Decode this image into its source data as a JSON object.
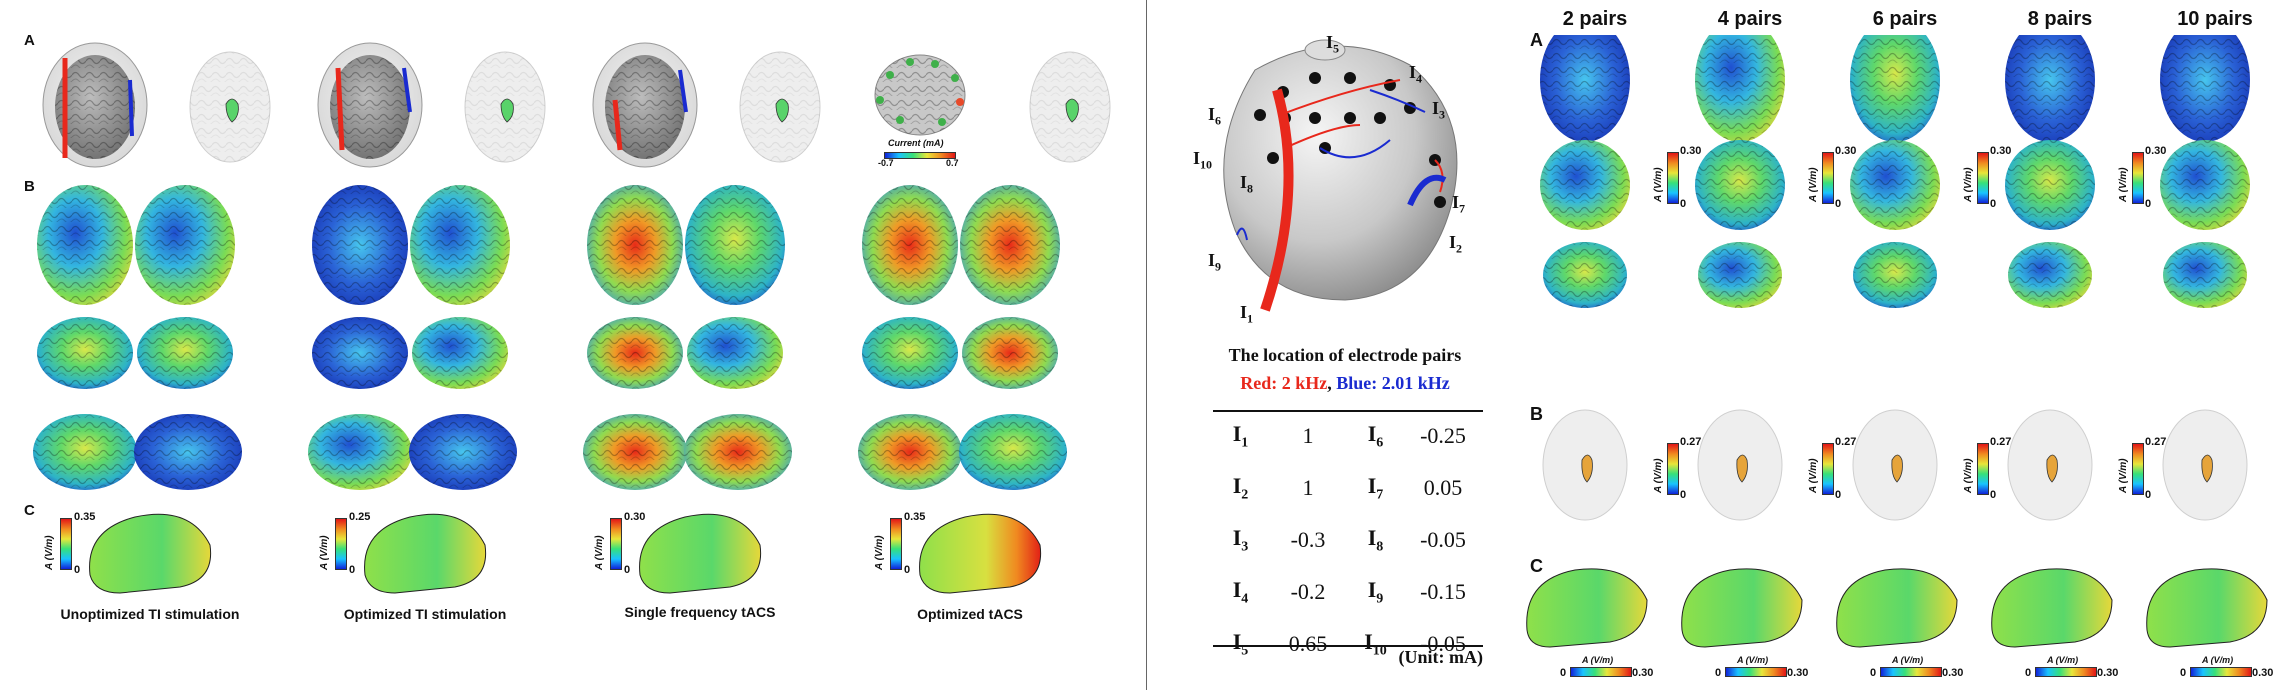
{
  "left_panel": {
    "row_labels": [
      "A",
      "B",
      "C"
    ],
    "captions": [
      "Unoptimized TI stimulation",
      "Optimized TI stimulation",
      "Single frequency tACS",
      "Optimized tACS"
    ],
    "colorbar_max": [
      "0.35",
      "0.25",
      "0.30",
      "0.35"
    ],
    "colorbar_min": "0",
    "colorbar_unit": "A (V/m)",
    "inset_label": "Current (mA)",
    "inset_min": "-0.7",
    "inset_max": "0.7"
  },
  "middle_panel": {
    "electrode_labels": [
      "I5",
      "I4",
      "I3",
      "I6",
      "I10",
      "I8",
      "I7",
      "I2",
      "I9",
      "I1"
    ],
    "title": "The location of electrode pairs",
    "legend_red": "Red: 2 kHz",
    "legend_sep": ", ",
    "legend_blue": "Blue: 2.01 kHz",
    "colors": {
      "red": "#e8281c",
      "blue": "#1a2bd0"
    },
    "table": [
      {
        "e1": "I",
        "s1": "1",
        "v1": "1",
        "e2": "I",
        "s2": "6",
        "v2": "-0.25"
      },
      {
        "e1": "I",
        "s1": "2",
        "v1": "1",
        "e2": "I",
        "s2": "7",
        "v2": "0.05"
      },
      {
        "e1": "I",
        "s1": "3",
        "v1": "-0.3",
        "e2": "I",
        "s2": "8",
        "v2": "-0.05"
      },
      {
        "e1": "I",
        "s1": "4",
        "v1": "-0.2",
        "e2": "I",
        "s2": "9",
        "v2": "-0.15"
      },
      {
        "e1": "I",
        "s1": "5",
        "v1": "0.65",
        "e2": "I",
        "s2": "10",
        "v2": "-0.05"
      }
    ],
    "unit": "(Unit: mA)"
  },
  "right_panel": {
    "headers": [
      "2 pairs",
      "4 pairs",
      "6 pairs",
      "8 pairs",
      "10 pairs"
    ],
    "row_labels": [
      "A",
      "B",
      "C"
    ],
    "colorbar_a_max": "0.30",
    "colorbar_b_max": "0.27",
    "colorbar_c_max": "0.30",
    "colorbar_min": "0",
    "colorbar_unit": "A (V/m)"
  }
}
